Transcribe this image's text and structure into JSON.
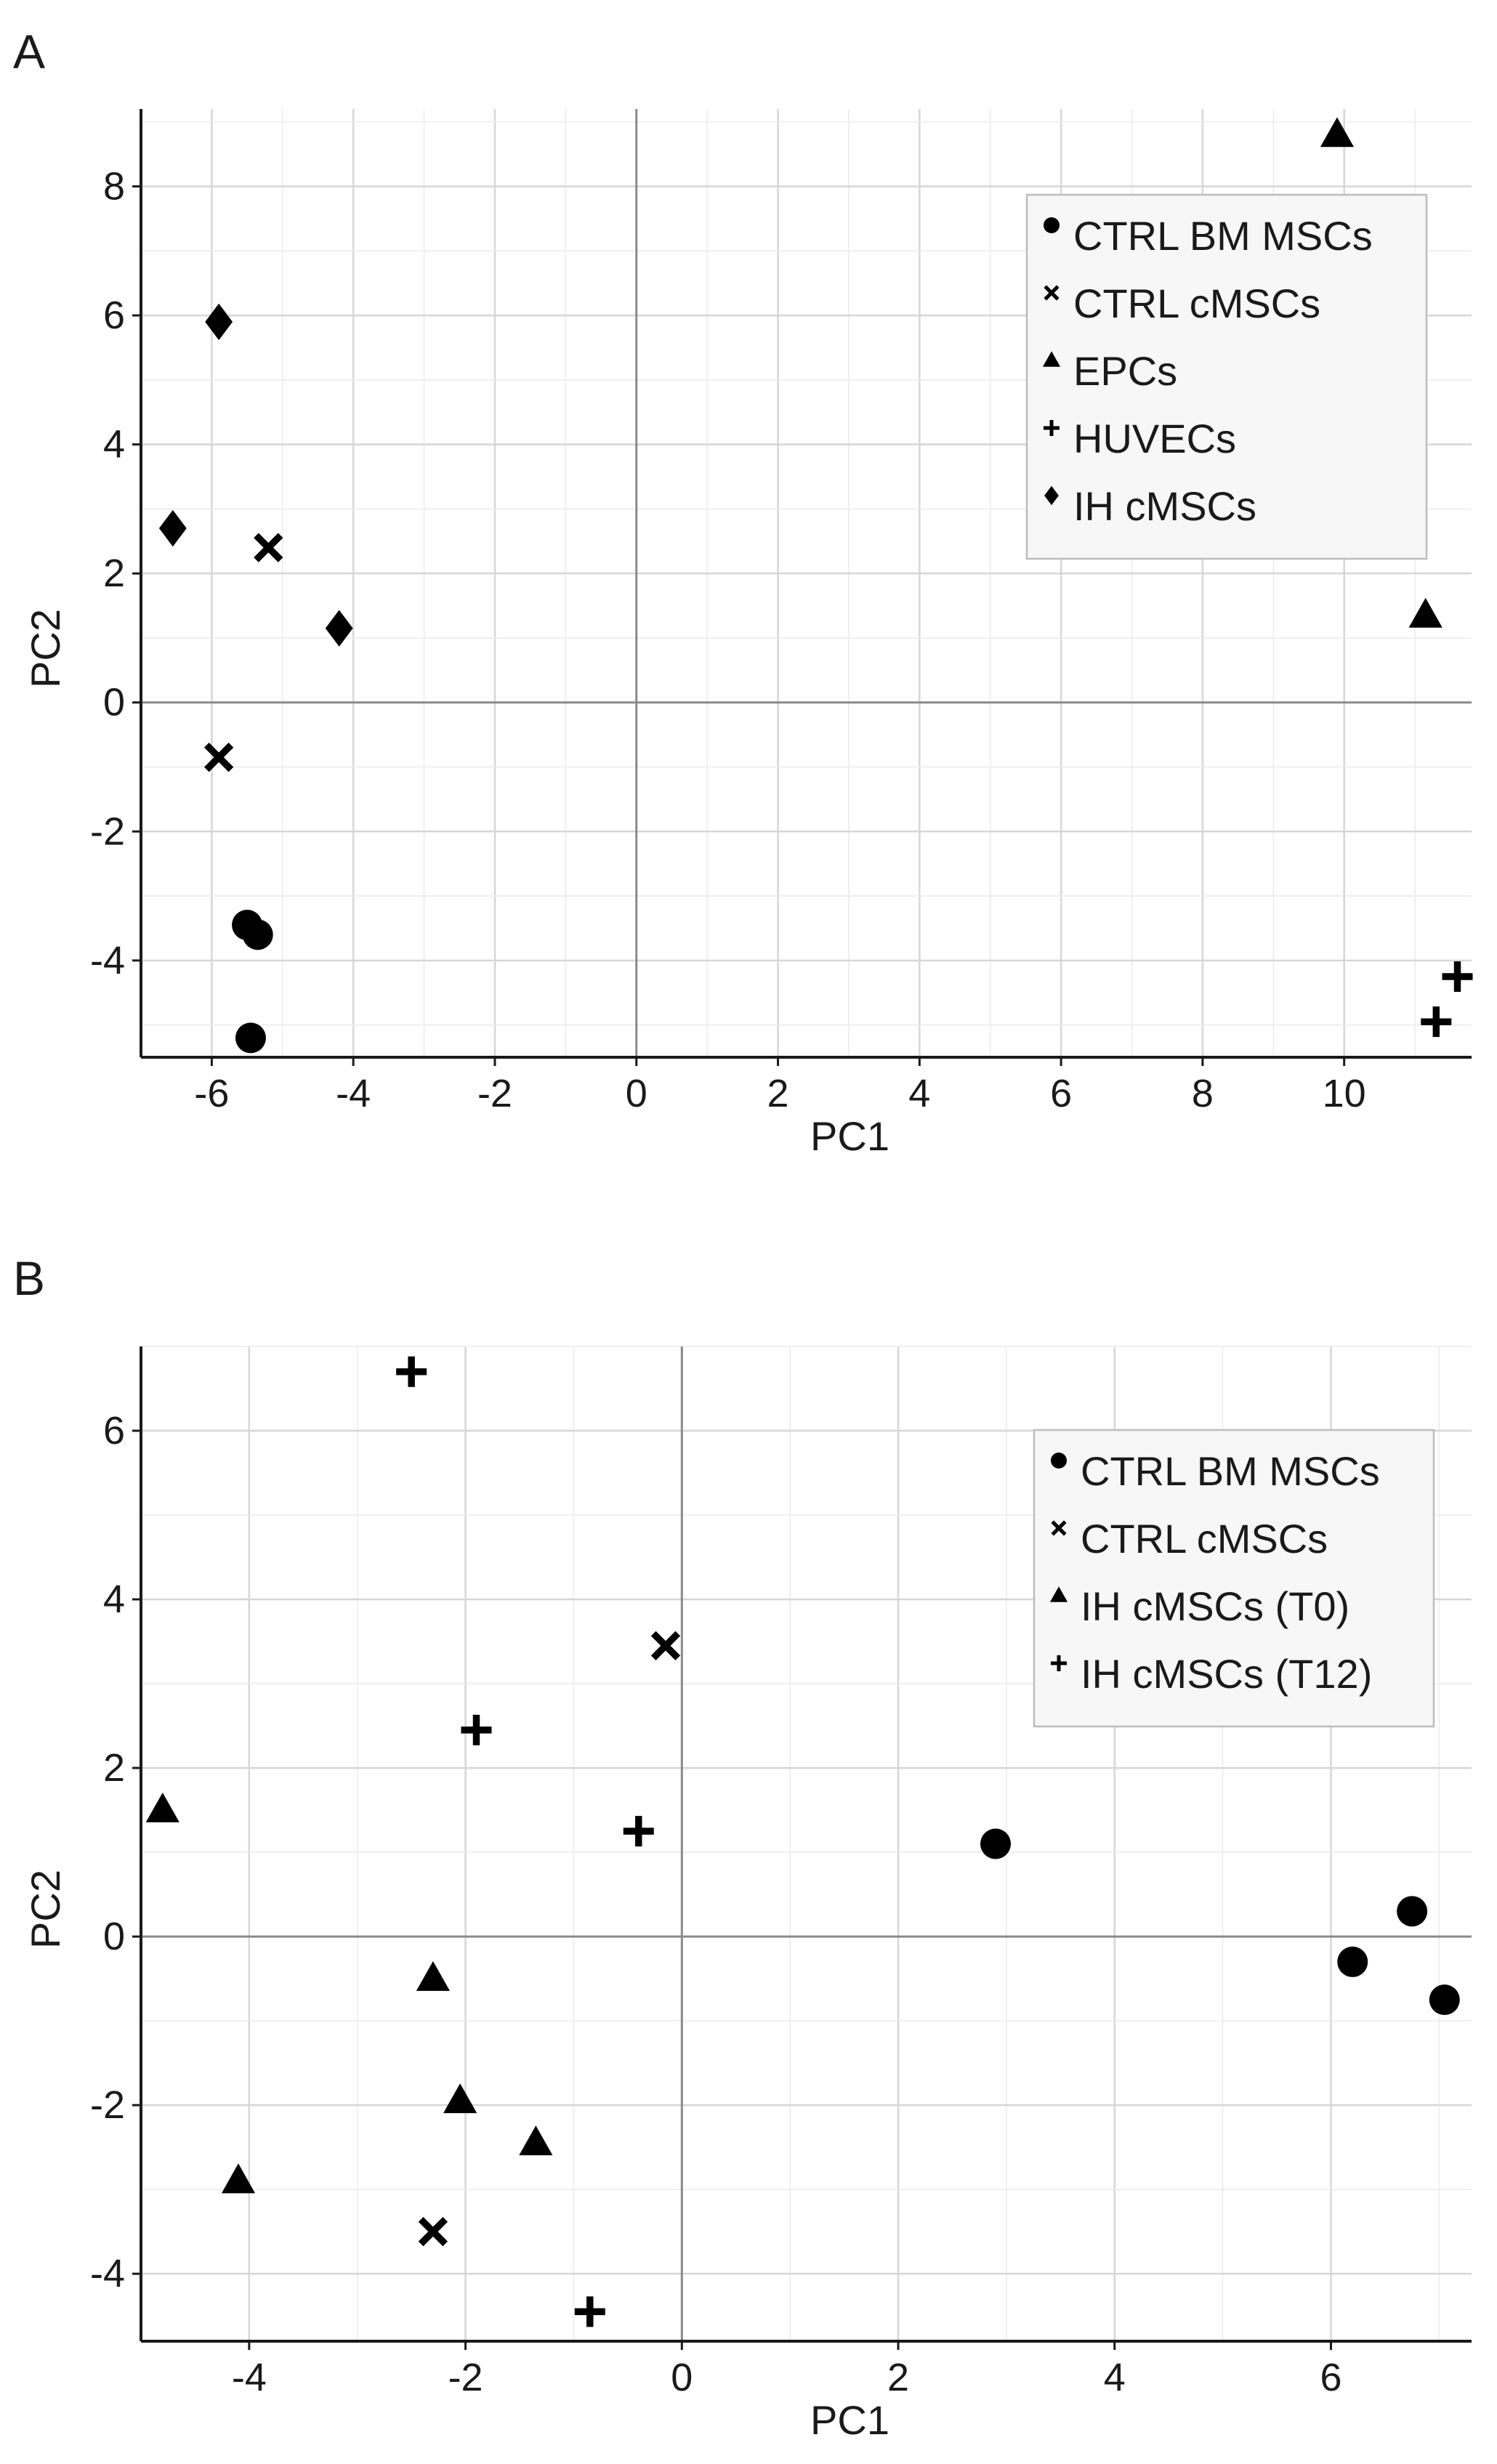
{
  "chart_data": [
    {
      "panel_label": "A",
      "type": "scatter",
      "xlabel": "PC1",
      "ylabel": "PC2",
      "xlim": [
        -7.0,
        11.8
      ],
      "ylim": [
        -5.5,
        9.2
      ],
      "xticks": [
        -6,
        -4,
        -2,
        0,
        2,
        4,
        6,
        8,
        10
      ],
      "yticks": [
        -4,
        -2,
        0,
        2,
        4,
        6,
        8
      ],
      "grid": true,
      "legend_position": "top-right",
      "series": [
        {
          "name": "CTRL BM MSCs",
          "marker": "circle",
          "points": [
            [
              -5.5,
              -3.45
            ],
            [
              -5.35,
              -3.6
            ],
            [
              -5.45,
              -5.2
            ]
          ]
        },
        {
          "name": "CTRL cMSCs",
          "marker": "cross",
          "points": [
            [
              -5.2,
              2.4
            ],
            [
              -5.9,
              -0.85
            ]
          ]
        },
        {
          "name": "EPCs",
          "marker": "triangle",
          "points": [
            [
              9.9,
              8.8
            ],
            [
              11.15,
              1.35
            ]
          ]
        },
        {
          "name": "HUVECs",
          "marker": "plus",
          "points": [
            [
              11.6,
              -4.25
            ],
            [
              11.3,
              -4.95
            ]
          ]
        },
        {
          "name": "IH cMSCs",
          "marker": "diamond",
          "points": [
            [
              -5.9,
              5.9
            ],
            [
              -6.55,
              2.7
            ],
            [
              -4.2,
              1.15
            ]
          ]
        }
      ]
    },
    {
      "panel_label": "B",
      "type": "scatter",
      "xlabel": "PC1",
      "ylabel": "PC2",
      "xlim": [
        -5.0,
        7.3
      ],
      "ylim": [
        -4.8,
        7.0
      ],
      "xticks": [
        -4,
        -2,
        0,
        2,
        4,
        6
      ],
      "yticks": [
        -4,
        -2,
        0,
        2,
        4,
        6
      ],
      "grid": true,
      "legend_position": "top-right",
      "series": [
        {
          "name": "CTRL BM MSCs",
          "marker": "circle",
          "points": [
            [
              2.9,
              1.1
            ],
            [
              6.75,
              0.3
            ],
            [
              6.2,
              -0.3
            ],
            [
              7.05,
              -0.75
            ]
          ]
        },
        {
          "name": "CTRL cMSCs",
          "marker": "cross",
          "points": [
            [
              -0.15,
              3.45
            ],
            [
              -2.3,
              -3.5
            ]
          ]
        },
        {
          "name": "IH cMSCs (T0)",
          "marker": "triangle",
          "points": [
            [
              -4.8,
              1.5
            ],
            [
              -2.3,
              -0.5
            ],
            [
              -2.05,
              -1.95
            ],
            [
              -1.35,
              -2.45
            ],
            [
              -4.1,
              -2.9
            ]
          ]
        },
        {
          "name": "IH cMSCs (T12)",
          "marker": "plus",
          "points": [
            [
              -2.5,
              6.7
            ],
            [
              -1.9,
              2.45
            ],
            [
              -0.4,
              1.25
            ],
            [
              -0.85,
              -4.45
            ]
          ]
        }
      ]
    }
  ]
}
